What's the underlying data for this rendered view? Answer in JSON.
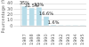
{
  "chart_data": {
    "type": "bar",
    "categories": [
      "1987",
      "1988",
      "1989",
      "1990",
      "1991",
      "1992",
      "1993",
      "1994",
      "1995"
    ],
    "values": [
      35.0,
      31.5,
      33.0,
      16.6,
      1.6,
      0.3,
      0.2,
      0.15,
      0.1
    ],
    "value_labels": [
      "35%",
      "31.5%",
      "33%",
      "16.6%",
      "1.6%",
      null,
      null,
      null,
      null
    ],
    "color": "#b8dce8",
    "ylabel": "Pourcentage (%)",
    "ylim": [
      0,
      40
    ],
    "yticks": [
      0,
      10,
      20,
      30,
      40
    ],
    "grid": true
  }
}
